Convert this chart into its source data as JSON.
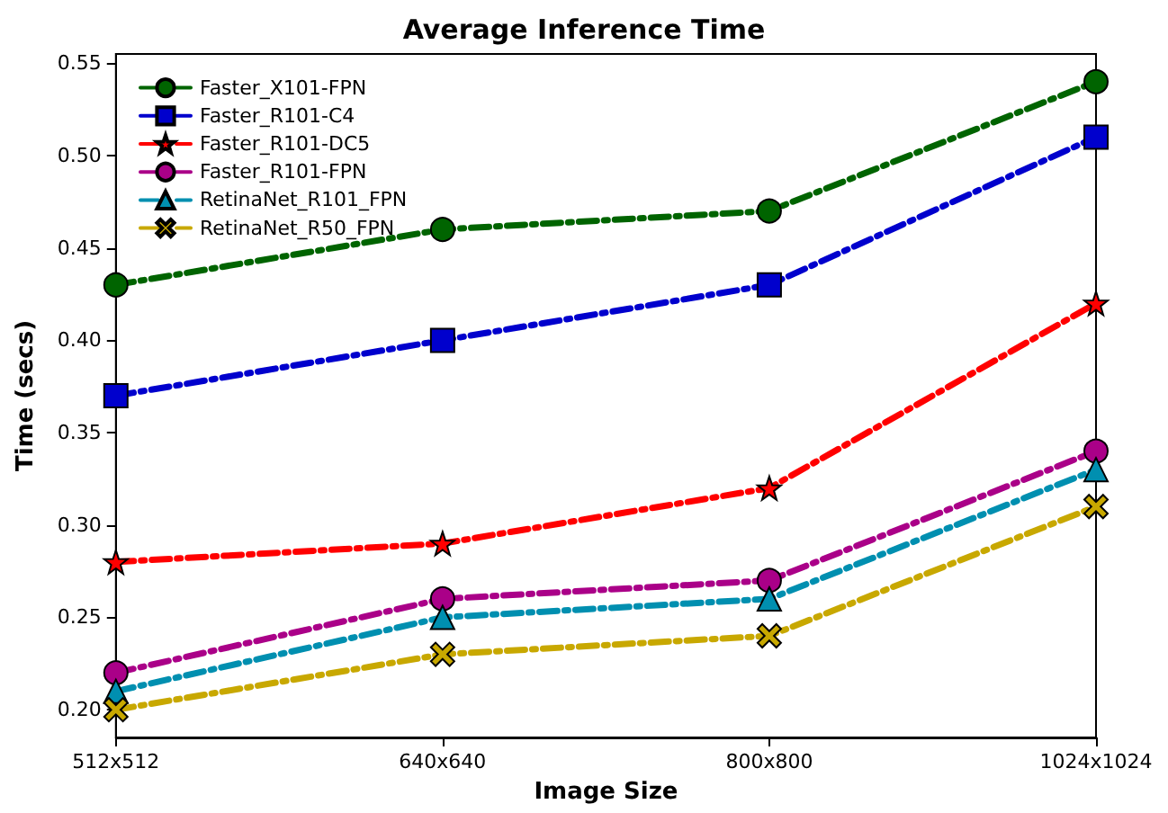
{
  "chart_data": {
    "type": "line",
    "title": "Average Inference Time",
    "xlabel": "Image Size",
    "ylabel": "Time (secs)",
    "categories": [
      "512x512",
      "640x640",
      "800x800",
      "1024x1024"
    ],
    "series": [
      {
        "name": "Faster_X101-FPN",
        "color": "#006400",
        "marker": "circle",
        "values": [
          0.43,
          0.46,
          0.47,
          0.54
        ]
      },
      {
        "name": "Faster_R101-C4",
        "color": "#0000cd",
        "marker": "square",
        "values": [
          0.37,
          0.4,
          0.43,
          0.51
        ]
      },
      {
        "name": "Faster_R101-DC5",
        "color": "#ff0000",
        "marker": "star",
        "values": [
          0.28,
          0.29,
          0.32,
          0.42
        ]
      },
      {
        "name": "Faster_R101-FPN",
        "color": "#aa0088",
        "marker": "circle",
        "values": [
          0.22,
          0.26,
          0.27,
          0.34
        ]
      },
      {
        "name": "RetinaNet_R101_FPN",
        "color": "#008fb0",
        "marker": "triangle",
        "values": [
          0.21,
          0.25,
          0.26,
          0.33
        ]
      },
      {
        "name": "RetinaNet_R50_FPN",
        "color": "#c8a800",
        "marker": "cross",
        "values": [
          0.2,
          0.23,
          0.24,
          0.31
        ]
      }
    ],
    "ylim": [
      0.185,
      0.555
    ],
    "yticks": [
      {
        "value": 0.2,
        "label": "0.20"
      },
      0.25,
      {
        "value": 0.3,
        "label": "0.30"
      },
      0.35,
      {
        "value": 0.4,
        "label": "0.40"
      },
      0.45,
      {
        "value": 0.5,
        "label": "0.50"
      },
      0.55
    ],
    "grid": false,
    "legend": "top left",
    "line_style": "dashdot"
  }
}
